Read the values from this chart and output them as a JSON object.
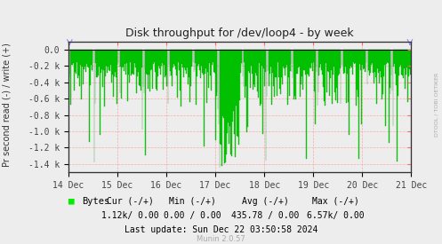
{
  "title": "Disk throughput for /dev/loop4 - by week",
  "ylabel": "Pr second read (-) / write (+)",
  "background_color": "#EDEDED",
  "plot_bg_color": "#EDEDED",
  "grid_color": "#FF9999",
  "bar_color": "#00EE00",
  "bar_edge_color": "#007700",
  "border_color": "#000000",
  "x_start": 0,
  "x_end": 604800,
  "ylim_min": -1500,
  "ylim_max": 100,
  "yticks": [
    0.0,
    -200,
    -400,
    -600,
    -800,
    -1000,
    -1200,
    -1400
  ],
  "ytick_labels": [
    "0.0",
    "-0.2 k",
    "-0.4 k",
    "-0.6 k",
    "-0.8 k",
    "-1.0 k",
    "-1.2 k",
    "-1.4 k"
  ],
  "xtick_positions": [
    0,
    86400,
    172800,
    259200,
    345600,
    432000,
    518400,
    604800
  ],
  "xtick_labels": [
    "14 Dec",
    "15 Dec",
    "16 Dec",
    "17 Dec",
    "18 Dec",
    "19 Dec",
    "20 Dec",
    "21 Dec"
  ],
  "legend_label": "Bytes",
  "cur_neg": "1.12k/",
  "cur_pos": " 0.00",
  "min_neg": "0.00 /",
  "min_pos": " 0.00",
  "avg_neg": "435.78 /",
  "avg_pos": " 0.00",
  "max_neg": "6.57k/",
  "max_pos": " 0.00",
  "last_update": "Last update: Sun Dec 22 03:50:58 2024",
  "munin_version": "Munin 2.0.57",
  "rrdtool_label": "DTOOL / TOBI OETIKER",
  "num_bars": 400,
  "seed": 42
}
